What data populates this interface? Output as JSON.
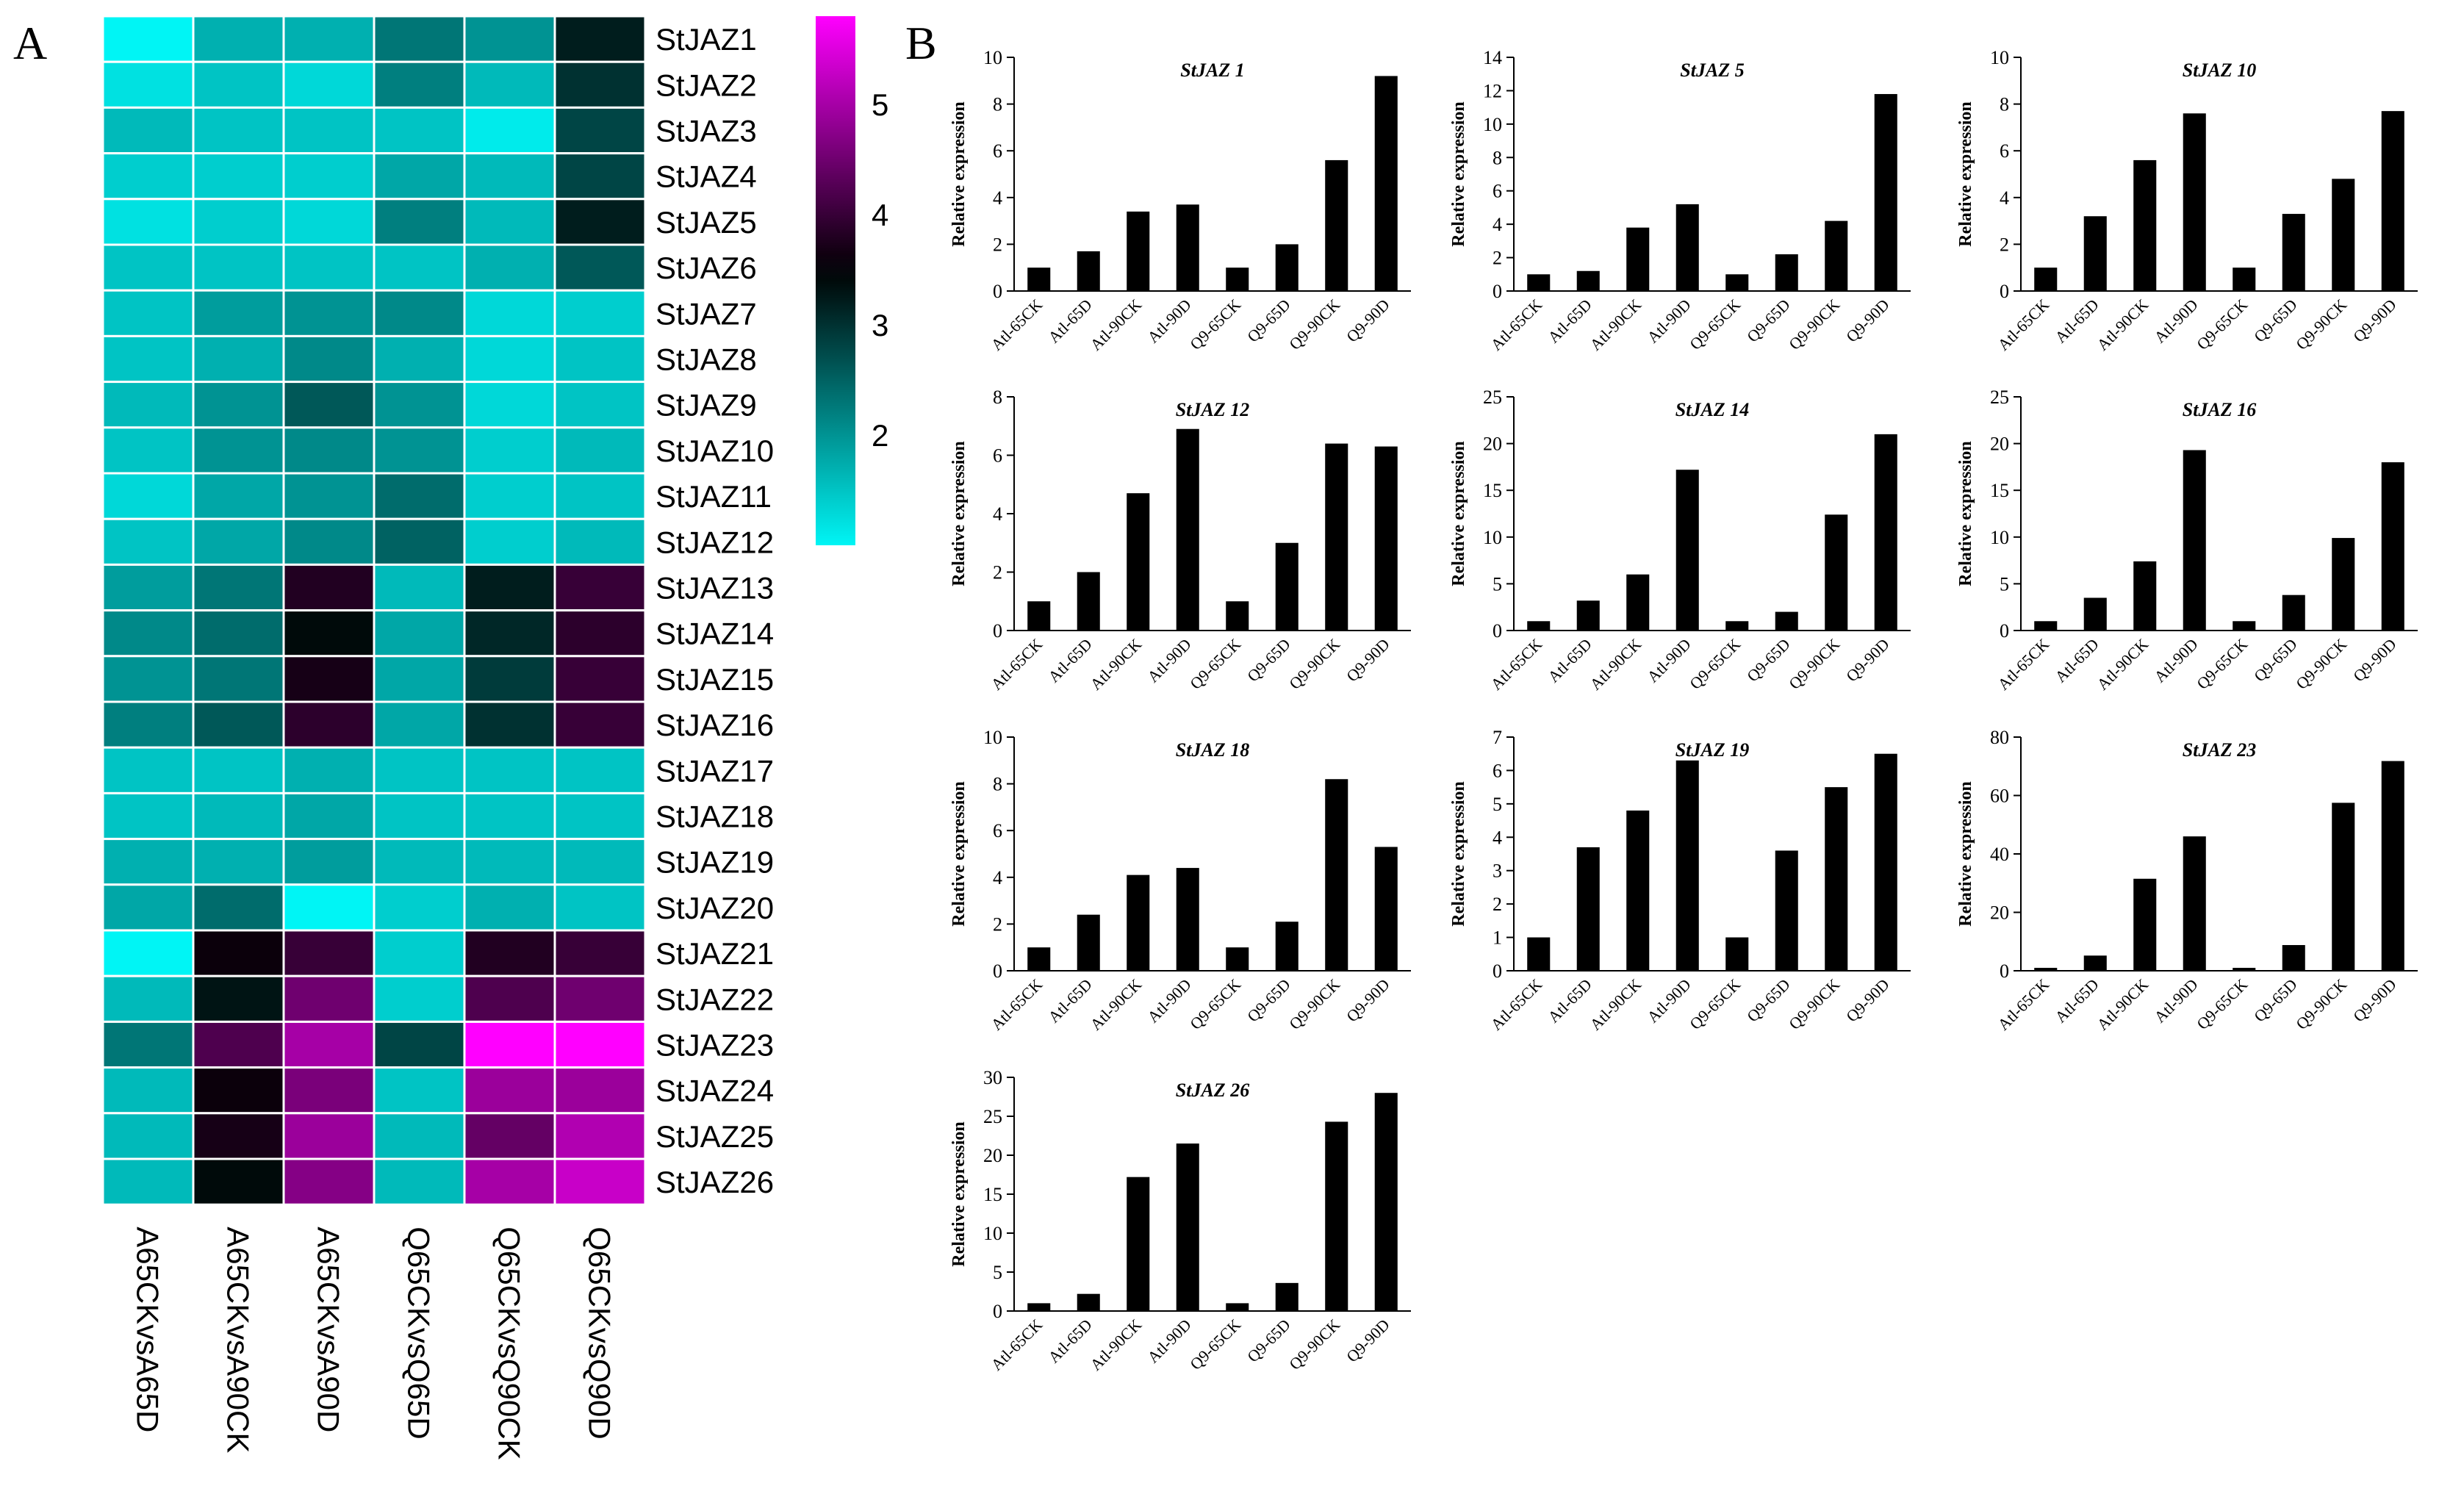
{
  "panels": {
    "a": "A",
    "b": "B"
  },
  "colors": {
    "low": "#00f5f5",
    "mid": "#000000",
    "high": "#ff00ff",
    "grid": "#ffffff",
    "bar": "#000000",
    "axis": "#000000"
  },
  "chart_data": [
    {
      "type": "heatmap",
      "title": "",
      "rows": [
        "StJAZ1",
        "StJAZ2",
        "StJAZ3",
        "StJAZ4",
        "StJAZ5",
        "StJAZ6",
        "StJAZ7",
        "StJAZ8",
        "StJAZ9",
        "StJAZ10",
        "StJAZ11",
        "StJAZ12",
        "StJAZ13",
        "StJAZ14",
        "StJAZ15",
        "StJAZ16",
        "StJAZ17",
        "StJAZ18",
        "StJAZ19",
        "StJAZ20",
        "StJAZ21",
        "StJAZ22",
        "StJAZ23",
        "StJAZ24",
        "StJAZ25",
        "StJAZ26"
      ],
      "columns": [
        "A65CKvsA65D",
        "A65CKvsA90CK",
        "A65CKvsA90D",
        "Q65CKvsQ65D",
        "Q65CKvsQ90CK",
        "Q65CKvsQ90D"
      ],
      "values": [
        [
          1.0,
          1.7,
          1.7,
          2.3,
          2.0,
          3.2
        ],
        [
          1.2,
          1.5,
          1.3,
          2.2,
          1.6,
          3.0
        ],
        [
          1.6,
          1.5,
          1.5,
          1.5,
          1.1,
          2.8
        ],
        [
          1.4,
          1.4,
          1.4,
          1.8,
          1.6,
          2.8
        ],
        [
          1.2,
          1.4,
          1.3,
          2.2,
          1.6,
          3.2
        ],
        [
          1.5,
          1.5,
          1.5,
          1.5,
          1.7,
          2.6
        ],
        [
          1.5,
          1.9,
          2.0,
          2.1,
          1.3,
          1.4
        ],
        [
          1.5,
          1.7,
          2.1,
          1.7,
          1.3,
          1.5
        ],
        [
          1.6,
          2.0,
          2.6,
          2.0,
          1.3,
          1.5
        ],
        [
          1.5,
          2.0,
          2.1,
          2.0,
          1.4,
          1.6
        ],
        [
          1.3,
          1.8,
          2.0,
          2.4,
          1.4,
          1.5
        ],
        [
          1.5,
          1.8,
          2.1,
          2.5,
          1.4,
          1.6
        ],
        [
          1.9,
          2.3,
          3.8,
          1.6,
          3.2,
          4.0
        ],
        [
          2.1,
          2.4,
          3.4,
          1.8,
          3.1,
          3.9
        ],
        [
          2.0,
          2.3,
          3.7,
          1.8,
          2.9,
          4.0
        ],
        [
          2.2,
          2.6,
          3.9,
          1.8,
          3.0,
          4.0
        ],
        [
          1.5,
          1.5,
          1.7,
          1.5,
          1.5,
          1.5
        ],
        [
          1.5,
          1.6,
          1.8,
          1.5,
          1.5,
          1.5
        ],
        [
          1.7,
          1.7,
          1.9,
          1.6,
          1.6,
          1.6
        ],
        [
          1.8,
          2.4,
          1.0,
          1.4,
          1.7,
          1.5
        ],
        [
          1.0,
          3.6,
          4.0,
          1.4,
          3.8,
          4.0
        ],
        [
          1.6,
          3.3,
          4.5,
          1.4,
          4.2,
          4.5
        ],
        [
          2.3,
          4.2,
          5.0,
          2.8,
          5.8,
          5.8
        ],
        [
          1.6,
          3.6,
          4.6,
          1.5,
          4.9,
          4.9
        ],
        [
          1.6,
          3.7,
          4.9,
          1.6,
          4.4,
          5.1
        ],
        [
          1.6,
          3.4,
          4.7,
          1.6,
          5.0,
          5.3
        ]
      ],
      "colorbar": {
        "min": 1,
        "max": 5.8,
        "ticks": [
          2,
          3,
          4,
          5
        ]
      }
    },
    {
      "type": "bar",
      "title": "StJAZ 1",
      "ylabel": "Relative expression",
      "categories": [
        "Atl-65CK",
        "Atl-65D",
        "Atl-90CK",
        "Atl-90D",
        "Q9-65CK",
        "Q9-65D",
        "Q9-90CK",
        "Q9-90D"
      ],
      "values": [
        1.0,
        1.7,
        3.4,
        3.7,
        1.0,
        2.0,
        5.6,
        9.2
      ],
      "ylim": [
        0,
        10
      ],
      "yticks": [
        0,
        2,
        4,
        6,
        8,
        10
      ]
    },
    {
      "type": "bar",
      "title": "StJAZ 5",
      "ylabel": "Relative expression",
      "categories": [
        "Atl-65CK",
        "Atl-65D",
        "Atl-90CK",
        "Atl-90D",
        "Q9-65CK",
        "Q9-65D",
        "Q9-90CK",
        "Q9-90D"
      ],
      "values": [
        1.0,
        1.2,
        3.8,
        5.2,
        1.0,
        2.2,
        4.2,
        11.8
      ],
      "ylim": [
        0,
        14
      ],
      "yticks": [
        0,
        2,
        4,
        6,
        8,
        10,
        12,
        14
      ]
    },
    {
      "type": "bar",
      "title": "StJAZ 10",
      "ylabel": "Relative expression",
      "categories": [
        "Atl-65CK",
        "Atl-65D",
        "Atl-90CK",
        "Atl-90D",
        "Q9-65CK",
        "Q9-65D",
        "Q9-90CK",
        "Q9-90D"
      ],
      "values": [
        1.0,
        3.2,
        5.6,
        7.6,
        1.0,
        3.3,
        4.8,
        7.7
      ],
      "ylim": [
        0,
        10
      ],
      "yticks": [
        0,
        2,
        4,
        6,
        8,
        10
      ]
    },
    {
      "type": "bar",
      "title": "StJAZ 12",
      "ylabel": "Relative expression",
      "categories": [
        "Atl-65CK",
        "Atl-65D",
        "Atl-90CK",
        "Atl-90D",
        "Q9-65CK",
        "Q9-65D",
        "Q9-90CK",
        "Q9-90D"
      ],
      "values": [
        1.0,
        2.0,
        4.7,
        6.9,
        1.0,
        3.0,
        6.4,
        6.3
      ],
      "ylim": [
        0,
        8
      ],
      "yticks": [
        0,
        2,
        4,
        6,
        8
      ]
    },
    {
      "type": "bar",
      "title": "StJAZ 14",
      "ylabel": "Relative expression",
      "categories": [
        "Atl-65CK",
        "Atl-65D",
        "Atl-90CK",
        "Atl-90D",
        "Q9-65CK",
        "Q9-65D",
        "Q9-90CK",
        "Q9-90D"
      ],
      "values": [
        1.0,
        3.2,
        6.0,
        17.2,
        1.0,
        2.0,
        12.4,
        21.0
      ],
      "ylim": [
        0,
        25
      ],
      "yticks": [
        0,
        5,
        10,
        15,
        20,
        25
      ]
    },
    {
      "type": "bar",
      "title": "StJAZ 16",
      "ylabel": "Relative expression",
      "categories": [
        "Atl-65CK",
        "Atl-65D",
        "Atl-90CK",
        "Atl-90D",
        "Q9-65CK",
        "Q9-65D",
        "Q9-90CK",
        "Q9-90D"
      ],
      "values": [
        1.0,
        3.5,
        7.4,
        19.3,
        1.0,
        3.8,
        9.9,
        18.0
      ],
      "ylim": [
        0,
        25
      ],
      "yticks": [
        0,
        5,
        10,
        15,
        20,
        25
      ]
    },
    {
      "type": "bar",
      "title": "StJAZ 18",
      "ylabel": "Relative expression",
      "categories": [
        "Atl-65CK",
        "Atl-65D",
        "Atl-90CK",
        "Atl-90D",
        "Q9-65CK",
        "Q9-65D",
        "Q9-90CK",
        "Q9-90D"
      ],
      "values": [
        1.0,
        2.4,
        4.1,
        4.4,
        1.0,
        2.1,
        8.2,
        5.3
      ],
      "ylim": [
        0,
        10
      ],
      "yticks": [
        0,
        2,
        4,
        6,
        8,
        10
      ]
    },
    {
      "type": "bar",
      "title": "StJAZ 19",
      "ylabel": "Relative expression",
      "categories": [
        "Atl-65CK",
        "Atl-65D",
        "Atl-90CK",
        "Atl-90D",
        "Q9-65CK",
        "Q9-65D",
        "Q9-90CK",
        "Q9-90D"
      ],
      "values": [
        1.0,
        3.7,
        4.8,
        6.3,
        1.0,
        3.6,
        5.5,
        6.5
      ],
      "ylim": [
        0,
        7
      ],
      "yticks": [
        0,
        1,
        2,
        3,
        4,
        5,
        6,
        7
      ]
    },
    {
      "type": "bar",
      "title": "StJAZ 23",
      "ylabel": "Relative expression",
      "categories": [
        "Atl-65CK",
        "Atl-65D",
        "Atl-90CK",
        "Atl-90D",
        "Q9-65CK",
        "Q9-65D",
        "Q9-90CK",
        "Q9-90D"
      ],
      "values": [
        1.0,
        5.2,
        31.5,
        46.0,
        1.0,
        8.8,
        57.5,
        71.8
      ],
      "ylim": [
        0,
        80
      ],
      "yticks": [
        0,
        20,
        40,
        60,
        80
      ]
    },
    {
      "type": "bar",
      "title": "StJAZ 26",
      "ylabel": "Relative expression",
      "categories": [
        "Atl-65CK",
        "Atl-65D",
        "Atl-90CK",
        "Atl-90D",
        "Q9-65CK",
        "Q9-65D",
        "Q9-90CK",
        "Q9-90D"
      ],
      "values": [
        1.0,
        2.2,
        17.2,
        21.5,
        1.0,
        3.6,
        24.3,
        28.0
      ],
      "ylim": [
        0,
        30
      ],
      "yticks": [
        0,
        5,
        10,
        15,
        20,
        25,
        30
      ]
    }
  ]
}
